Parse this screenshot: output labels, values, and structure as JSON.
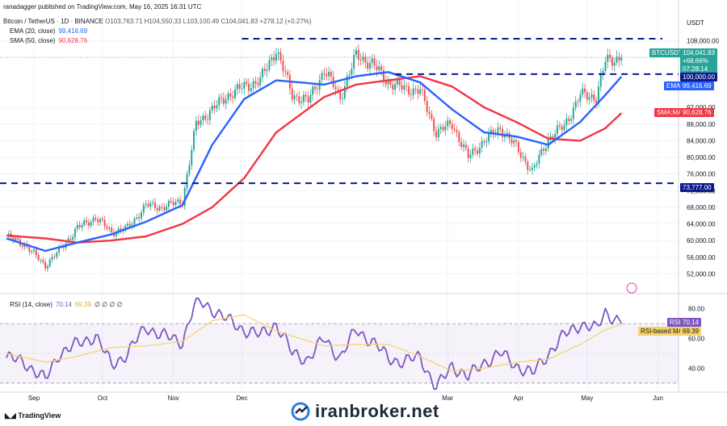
{
  "header": {
    "published": "ranadagger published on TradingView.com, May 16, 2025 16:31 UTC",
    "symbol_line": "Bitcoin / TetherUS · 1D · BINANCE",
    "ohlc": "O103,763.71  H104,550.33  L103,100.49  C104,041.83  +278.12 (+0.27%)"
  },
  "legend": {
    "ema_label": "EMA (20, close)",
    "ema_value": "99,416.69",
    "sma_label": "SMA (50, close)",
    "sma_value": "90,628.76",
    "rsi_label": "RSI (14, close)",
    "rsi_value": "70.14",
    "rsi_ma_value": "69.39",
    "rsi_rest": "∅ ∅ ∅ ∅"
  },
  "axis": {
    "unit": "USDT"
  },
  "tags": {
    "symbol": "BTCUSDT",
    "price": "104,041.83",
    "change": "+68.66%",
    "countdown": "07:28:14",
    "level_100k": "100,000.00",
    "ema": "EMA",
    "ema_val": "99,416.69",
    "sma": "SMA:MA",
    "sma_val": "90,628.76",
    "level_73777": "73,777.00",
    "rsi": "RSI",
    "rsi_val": "70.14",
    "rsi_ma": "RSI-based MA",
    "rsi_ma_val": "69.39"
  },
  "footer": {
    "logo": "TradingView",
    "watermark": "iranbroker.net"
  },
  "colors": {
    "up": "#26a69a",
    "down": "#ef5350",
    "ema": "#2962ff",
    "sma": "#f23645",
    "rsi": "#7e57c2",
    "rsi_ma": "#f7d26a",
    "level": "#0b1a8c"
  },
  "chart_data": [
    {
      "type": "candlestick",
      "title": "Bitcoin / TetherUS · 1D · BINANCE",
      "ylim": [
        48000,
        112000
      ],
      "yticks": [
        52000,
        56000,
        60000,
        64000,
        68000,
        72000,
        76000,
        80000,
        84000,
        88000,
        92000,
        108000
      ],
      "xticks": [
        "Sep",
        "Oct",
        "Nov",
        "Dec",
        "Mar",
        "Apr",
        "May",
        "Jun"
      ],
      "horizontal_levels": [
        108500,
        100000,
        73777
      ],
      "close_path": [
        [
          "Aug 20",
          61000
        ],
        [
          "Aug 28",
          59000
        ],
        [
          "Sep 6",
          54000
        ],
        [
          "Sep 12",
          57500
        ],
        [
          "Sep 20",
          63000
        ],
        [
          "Sep 28",
          65500
        ],
        [
          "Oct 5",
          62000
        ],
        [
          "Oct 12",
          63000
        ],
        [
          "Oct 20",
          68500
        ],
        [
          "Oct 27",
          68000
        ],
        [
          "Nov 5",
          69500
        ],
        [
          "Nov 11",
          88000
        ],
        [
          "Nov 18",
          91500
        ],
        [
          "Nov 25",
          95000
        ],
        [
          "Dec 2",
          97000
        ],
        [
          "Dec 9",
          98500
        ],
        [
          "Dec 16",
          106000
        ],
        [
          "Dec 23",
          95000
        ],
        [
          "Dec 30",
          93500
        ],
        [
          "Jan 6",
          101000
        ],
        [
          "Jan 13",
          94500
        ],
        [
          "Jan 20",
          104500
        ],
        [
          "Jan 27",
          102500
        ],
        [
          "Feb 3",
          98000
        ],
        [
          "Feb 10",
          96500
        ],
        [
          "Feb 17",
          96000
        ],
        [
          "Feb 24",
          86000
        ],
        [
          "Mar 3",
          88000
        ],
        [
          "Mar 10",
          80000
        ],
        [
          "Mar 17",
          84000
        ],
        [
          "Mar 24",
          87000
        ],
        [
          "Mar 31",
          82500
        ],
        [
          "Apr 7",
          76500
        ],
        [
          "Apr 14",
          84500
        ],
        [
          "Apr 21",
          87500
        ],
        [
          "Apr 28",
          95000
        ],
        [
          "May 5",
          94500
        ],
        [
          "May 9",
          103000
        ],
        [
          "May 16",
          104041.83
        ]
      ],
      "ema20": [
        [
          "Aug 20",
          60500
        ],
        [
          "Sep 6",
          57500
        ],
        [
          "Sep 20",
          59500
        ],
        [
          "Oct 5",
          61500
        ],
        [
          "Oct 20",
          64500
        ],
        [
          "Nov 5",
          68500
        ],
        [
          "Nov 18",
          83000
        ],
        [
          "Dec 2",
          94000
        ],
        [
          "Dec 16",
          98500
        ],
        [
          "Jan 6",
          97500
        ],
        [
          "Jan 20",
          99500
        ],
        [
          "Feb 3",
          100500
        ],
        [
          "Feb 17",
          98000
        ],
        [
          "Mar 3",
          91500
        ],
        [
          "Mar 17",
          86000
        ],
        [
          "Mar 31",
          85000
        ],
        [
          "Apr 14",
          83000
        ],
        [
          "Apr 28",
          88500
        ],
        [
          "May 9",
          95000
        ],
        [
          "May 16",
          99416.69
        ]
      ],
      "sma50": [
        [
          "Aug 20",
          61200
        ],
        [
          "Sep 6",
          60500
        ],
        [
          "Sep 20",
          59500
        ],
        [
          "Oct 5",
          60000
        ],
        [
          "Oct 20",
          61000
        ],
        [
          "Nov 5",
          64000
        ],
        [
          "Nov 18",
          68000
        ],
        [
          "Dec 2",
          75000
        ],
        [
          "Dec 16",
          86000
        ],
        [
          "Jan 6",
          94500
        ],
        [
          "Jan 20",
          97500
        ],
        [
          "Feb 3",
          98500
        ],
        [
          "Feb 17",
          99500
        ],
        [
          "Mar 3",
          97000
        ],
        [
          "Mar 17",
          92000
        ],
        [
          "Mar 31",
          88500
        ],
        [
          "Apr 14",
          84500
        ],
        [
          "Apr 28",
          84000
        ],
        [
          "May 9",
          87000
        ],
        [
          "May 16",
          90628.76
        ]
      ]
    },
    {
      "type": "line",
      "title": "RSI (14, close)",
      "ylim": [
        25,
        88
      ],
      "yticks": [
        40,
        60,
        80
      ],
      "bands": [
        30,
        70
      ],
      "rsi": [
        [
          "Aug 20",
          47
        ],
        [
          "Aug 28",
          44
        ],
        [
          "Sep 6",
          32
        ],
        [
          "Sep 12",
          50
        ],
        [
          "Sep 20",
          56
        ],
        [
          "Sep 28",
          62
        ],
        [
          "Oct 5",
          42
        ],
        [
          "Oct 12",
          50
        ],
        [
          "Oct 20",
          68
        ],
        [
          "Oct 27",
          62
        ],
        [
          "Nov 5",
          58
        ],
        [
          "Nov 11",
          86
        ],
        [
          "Nov 18",
          80
        ],
        [
          "Nov 25",
          72
        ],
        [
          "Dec 2",
          66
        ],
        [
          "Dec 9",
          62
        ],
        [
          "Dec 16",
          70
        ],
        [
          "Dec 23",
          50
        ],
        [
          "Dec 30",
          46
        ],
        [
          "Jan 6",
          60
        ],
        [
          "Jan 13",
          47
        ],
        [
          "Jan 20",
          66
        ],
        [
          "Jan 27",
          58
        ],
        [
          "Feb 3",
          47
        ],
        [
          "Feb 10",
          44
        ],
        [
          "Feb 17",
          48
        ],
        [
          "Feb 24",
          26
        ],
        [
          "Mar 3",
          42
        ],
        [
          "Mar 10",
          34
        ],
        [
          "Mar 17",
          44
        ],
        [
          "Mar 24",
          50
        ],
        [
          "Mar 31",
          42
        ],
        [
          "Apr 7",
          36
        ],
        [
          "Apr 14",
          50
        ],
        [
          "Apr 21",
          62
        ],
        [
          "Apr 28",
          70
        ],
        [
          "May 5",
          66
        ],
        [
          "May 9",
          78
        ],
        [
          "May 16",
          70.14
        ]
      ],
      "rsi_ma": [
        [
          "Aug 20",
          50
        ],
        [
          "Sep 6",
          44
        ],
        [
          "Sep 20",
          48
        ],
        [
          "Oct 5",
          54
        ],
        [
          "Oct 20",
          55
        ],
        [
          "Nov 5",
          58
        ],
        [
          "Nov 18",
          72
        ],
        [
          "Dec 2",
          76
        ],
        [
          "Dec 16",
          65
        ],
        [
          "Jan 6",
          55
        ],
        [
          "Jan 20",
          56
        ],
        [
          "Feb 3",
          56
        ],
        [
          "Feb 17",
          48
        ],
        [
          "Mar 3",
          38
        ],
        [
          "Mar 17",
          40
        ],
        [
          "Mar 31",
          44
        ],
        [
          "Apr 14",
          46
        ],
        [
          "Apr 28",
          56
        ],
        [
          "May 9",
          66
        ],
        [
          "May 16",
          69.39
        ]
      ]
    }
  ]
}
